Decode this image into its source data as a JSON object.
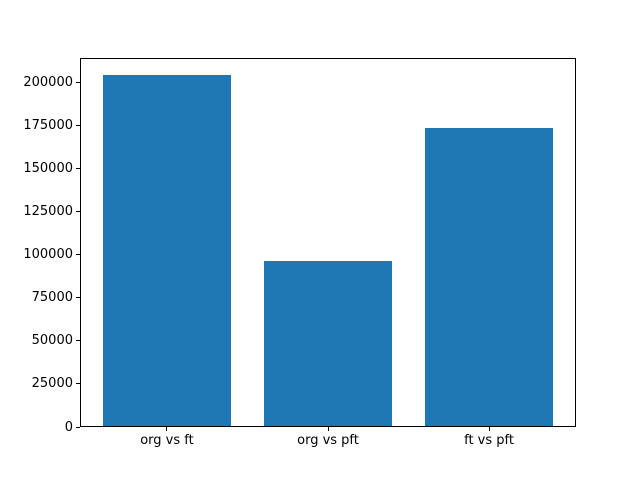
{
  "chart_data": {
    "type": "bar",
    "title": "",
    "xlabel": "",
    "ylabel": "",
    "categories": [
      "org vs ft",
      "org vs pft",
      "ft vs pft"
    ],
    "values": [
      204000,
      95500,
      173000
    ],
    "yticks": [
      0,
      25000,
      50000,
      75000,
      100000,
      125000,
      150000,
      175000,
      200000
    ],
    "ylim": [
      0,
      214200
    ],
    "xlim": [
      -0.54,
      2.54
    ],
    "bar_width_units": 0.8,
    "bar_color": "#1f77b4",
    "axis_color": "#000000",
    "background_color": "#ffffff",
    "grid": false,
    "legend": null
  }
}
